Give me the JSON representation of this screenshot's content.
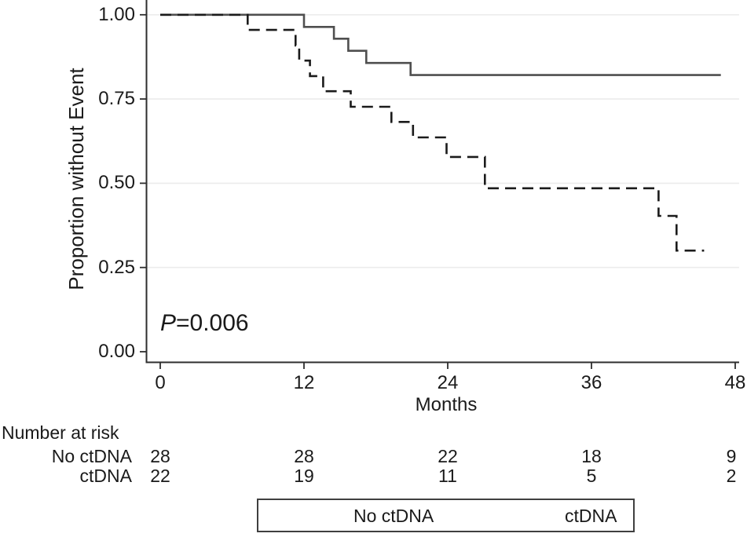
{
  "y_axis": {
    "label": "Proportion without Event",
    "ticks": [
      "1.00",
      "0.75",
      "0.50",
      "0.25",
      "0.00"
    ]
  },
  "x_axis": {
    "label": "Months",
    "ticks": [
      "0",
      "12",
      "24",
      "36",
      "48"
    ]
  },
  "annotation": {
    "p_italic": "P",
    "p_rest": "=0.006"
  },
  "risk_table": {
    "title": "Number at risk",
    "rows": [
      {
        "label": "No ctDNA",
        "counts": [
          "28",
          "28",
          "22",
          "18",
          "9"
        ]
      },
      {
        "label": "ctDNA",
        "counts": [
          "22",
          "19",
          "11",
          "5",
          "2"
        ]
      }
    ]
  },
  "legend": {
    "items": [
      {
        "label": "No ctDNA",
        "style": "solid"
      },
      {
        "label": "ctDNA",
        "style": "dashed"
      }
    ]
  },
  "colors": {
    "solid_curve": "#4f4f4f",
    "dashed_curve": "#1b1b1b",
    "axis": "#2e2e2e",
    "grid": "#ececec",
    "text": "#1a1a1a"
  },
  "chart_data": {
    "type": "line",
    "subtype": "kaplan-meier-step",
    "title": "",
    "xlabel": "Months",
    "ylabel": "Proportion without Event",
    "xlim": [
      0,
      48
    ],
    "ylim": [
      0,
      1
    ],
    "x_ticks": [
      0,
      12,
      24,
      36,
      48
    ],
    "y_ticks": [
      0,
      0.25,
      0.5,
      0.75,
      1.0
    ],
    "grid": "horizontal-major-ticks-except-zero",
    "legend_position": "bottom",
    "p_value_annotation": "P=0.006",
    "series": [
      {
        "name": "No ctDNA",
        "line": "solid",
        "color": "#4f4f4f",
        "steps": [
          [
            0,
            1.0
          ],
          [
            12.0,
            0.964
          ],
          [
            14.5,
            0.929
          ],
          [
            15.7,
            0.893
          ],
          [
            17.2,
            0.857
          ],
          [
            20.9,
            0.821
          ]
        ],
        "end_x": 46.8
      },
      {
        "name": "ctDNA",
        "line": "dashed",
        "color": "#1b1b1b",
        "steps": [
          [
            0,
            1.0
          ],
          [
            7.3,
            0.955
          ],
          [
            11.3,
            0.909
          ],
          [
            11.6,
            0.864
          ],
          [
            12.5,
            0.818
          ],
          [
            13.6,
            0.773
          ],
          [
            15.9,
            0.727
          ],
          [
            19.3,
            0.682
          ],
          [
            21.1,
            0.636
          ],
          [
            23.9,
            0.578
          ],
          [
            27.1,
            0.485
          ],
          [
            41.6,
            0.403
          ],
          [
            43.1,
            0.3
          ]
        ],
        "end_x": 45.4
      }
    ],
    "number_at_risk": {
      "timepoints": [
        0,
        12,
        24,
        36,
        48
      ],
      "groups": [
        {
          "name": "No ctDNA",
          "counts": [
            28,
            28,
            22,
            18,
            9
          ]
        },
        {
          "name": "ctDNA",
          "counts": [
            22,
            19,
            11,
            5,
            2
          ]
        }
      ]
    }
  }
}
